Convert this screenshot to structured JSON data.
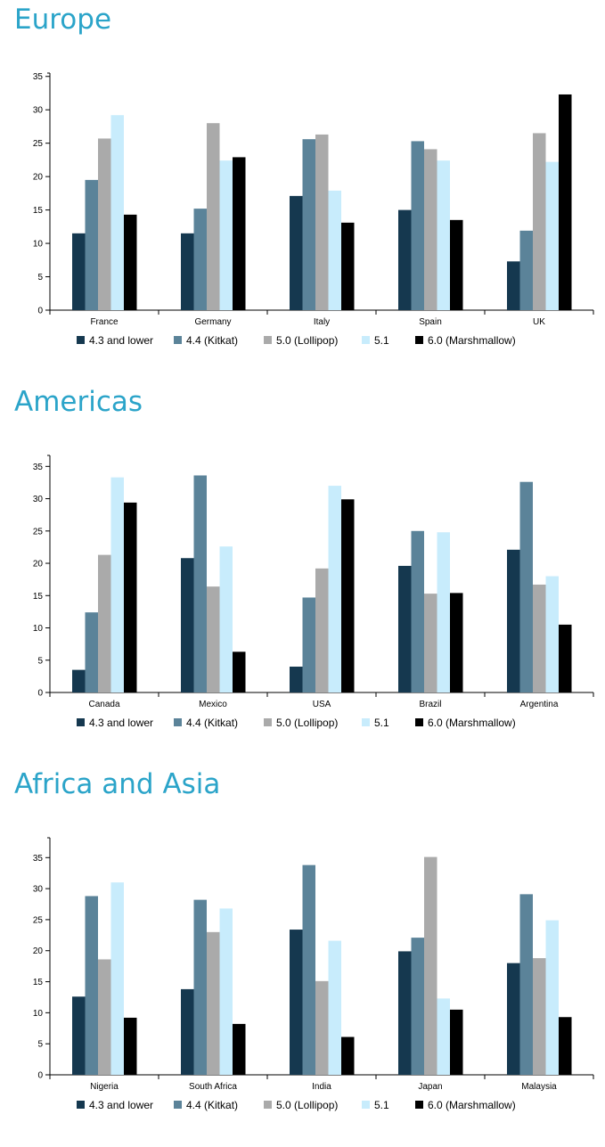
{
  "colors": {
    "title": "#2ba4c9",
    "series": [
      "#15384f",
      "#5b8399",
      "#aaaaaa",
      "#c8ecfc",
      "#000000"
    ]
  },
  "legend": [
    "4.3 and lower",
    "4.4 (Kitkat)",
    "5.0 (Lollipop)",
    "5.1",
    "6.0 (Marshmallow)"
  ],
  "chart_data": [
    {
      "type": "bar",
      "title": "Europe",
      "categories": [
        "France",
        "Germany",
        "Italy",
        "Spain",
        "UK"
      ],
      "yticks": [
        0,
        5,
        10,
        15,
        20,
        25,
        30,
        35
      ],
      "ylim": [
        0,
        35.5
      ],
      "series": [
        {
          "name": "4.3 and lower",
          "values": [
            11.5,
            11.5,
            17.1,
            15.0,
            7.3
          ]
        },
        {
          "name": "4.4 (Kitkat)",
          "values": [
            19.5,
            15.2,
            25.6,
            25.3,
            11.9
          ]
        },
        {
          "name": "5.0 (Lollipop)",
          "values": [
            25.7,
            28.0,
            26.3,
            24.1,
            26.5
          ]
        },
        {
          "name": "5.1",
          "values": [
            29.2,
            22.4,
            17.9,
            22.4,
            22.2
          ]
        },
        {
          "name": "6.0 (Marshmallow)",
          "values": [
            14.3,
            22.9,
            13.1,
            13.5,
            32.3
          ]
        }
      ]
    },
    {
      "type": "bar",
      "title": "Americas",
      "categories": [
        "Canada",
        "Mexico",
        "USA",
        "Brazil",
        "Argentina"
      ],
      "yticks": [
        0,
        5,
        10,
        15,
        20,
        25,
        30,
        35
      ],
      "ylim": [
        0,
        36.7
      ],
      "series": [
        {
          "name": "4.3 and lower",
          "values": [
            3.5,
            20.8,
            4.0,
            19.6,
            22.1
          ]
        },
        {
          "name": "4.4 (Kitkat)",
          "values": [
            12.4,
            33.6,
            14.7,
            25.0,
            32.6
          ]
        },
        {
          "name": "5.0 (Lollipop)",
          "values": [
            21.3,
            16.4,
            19.2,
            15.3,
            16.7
          ]
        },
        {
          "name": "5.1",
          "values": [
            33.3,
            22.6,
            32.0,
            24.8,
            18.0
          ]
        },
        {
          "name": "6.0 (Marshmallow)",
          "values": [
            29.4,
            6.3,
            29.9,
            15.4,
            10.5
          ]
        }
      ]
    },
    {
      "type": "bar",
      "title": "Africa and Asia",
      "categories": [
        "Nigeria",
        "South Africa",
        "India",
        "Japan",
        "Malaysia"
      ],
      "yticks": [
        0,
        5,
        10,
        15,
        20,
        25,
        30,
        35
      ],
      "ylim": [
        0,
        38.2
      ],
      "series": [
        {
          "name": "4.3 and lower",
          "values": [
            12.6,
            13.8,
            23.4,
            19.9,
            18.0
          ]
        },
        {
          "name": "4.4 (Kitkat)",
          "values": [
            28.8,
            28.2,
            33.8,
            22.1,
            29.1
          ]
        },
        {
          "name": "5.0 (Lollipop)",
          "values": [
            18.6,
            23.0,
            15.1,
            35.1,
            18.8
          ]
        },
        {
          "name": "5.1",
          "values": [
            31.0,
            26.8,
            21.6,
            12.3,
            24.9
          ]
        },
        {
          "name": "6.0 (Marshmallow)",
          "values": [
            9.2,
            8.2,
            6.1,
            10.5,
            9.3
          ]
        }
      ]
    }
  ]
}
